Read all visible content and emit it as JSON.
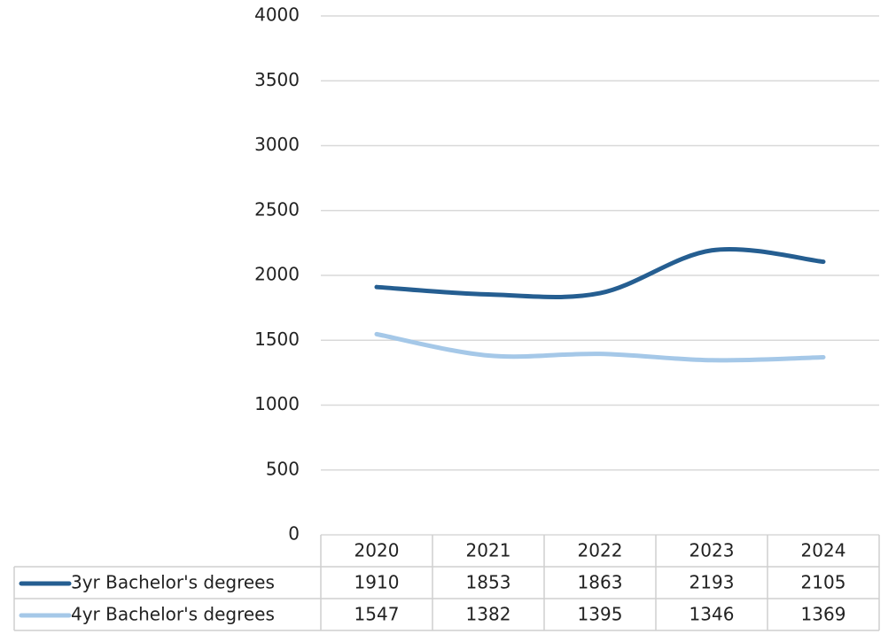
{
  "chart_data": {
    "type": "line",
    "categories": [
      "2020",
      "2021",
      "2022",
      "2023",
      "2024"
    ],
    "series": [
      {
        "name": "3yr Bachelor's degrees",
        "color": "#255e91",
        "values": [
          1910,
          1853,
          1863,
          2193,
          2105
        ]
      },
      {
        "name": "4yr Bachelor's degrees",
        "color": "#a5c8e8",
        "values": [
          1547,
          1382,
          1395,
          1346,
          1369
        ]
      }
    ],
    "ylim": [
      0,
      4000
    ],
    "yticks": [
      0,
      500,
      1000,
      1500,
      2000,
      2500,
      3000,
      3500,
      4000
    ],
    "grid": true,
    "smooth": true,
    "data_table": true
  }
}
